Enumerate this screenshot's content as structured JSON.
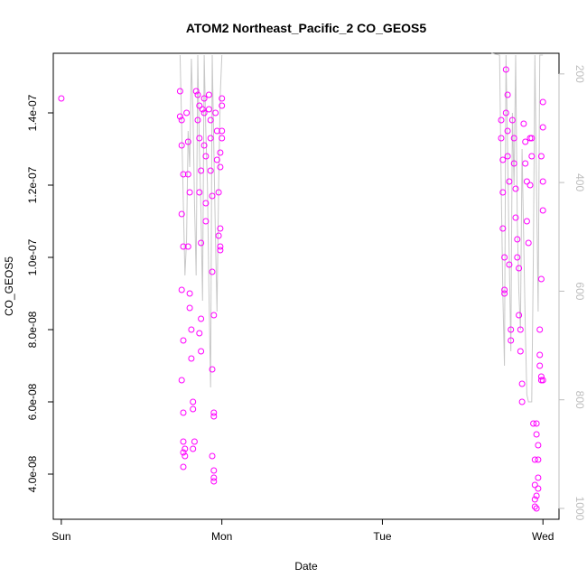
{
  "chart_data": {
    "type": "scatter",
    "title": "ATOM2 Northeast_Pacific_2 CO_GEOS5",
    "xlabel": "Date",
    "ylabel": "CO_GEOS5",
    "x_tick_labels": [
      "Sun",
      "Mon",
      "Tue",
      "Wed"
    ],
    "xlim": [
      -0.05,
      3.1
    ],
    "ylim": [
      2.75e-08,
      1.565e-07
    ],
    "y_ticks": [
      4e-08,
      6e-08,
      8e-08,
      1e-07,
      1.2e-07,
      1.4e-07
    ],
    "y_tick_labels": [
      "4.0e-08",
      "6.0e-08",
      "8.0e-08",
      "1.0e-07",
      "1.2e-07",
      "1.4e-07"
    ],
    "y2_label": "",
    "y2_ticks": [
      200,
      400,
      600,
      800,
      1000
    ],
    "y2_lim": [
      1020,
      162
    ],
    "grid": false,
    "colors": {
      "points": "#ff00ff",
      "line": "#c8c8c8",
      "axis": "#000000",
      "secondary_axis": "#bdbdbd"
    },
    "series": [
      {
        "marker": "open-circle",
        "points": [
          [
            0.0,
            1.44e-07
          ],
          [
            0.74,
            1.46e-07
          ],
          [
            0.74,
            1.39e-07
          ],
          [
            0.75,
            1.38e-07
          ],
          [
            0.75,
            1.31e-07
          ],
          [
            0.76,
            1.23e-07
          ],
          [
            0.75,
            1.12e-07
          ],
          [
            0.76,
            1.03e-07
          ],
          [
            0.75,
            9.1e-08
          ],
          [
            0.76,
            7.7e-08
          ],
          [
            0.75,
            6.6e-08
          ],
          [
            0.76,
            5.7e-08
          ],
          [
            0.76,
            4.9e-08
          ],
          [
            0.77,
            4.7e-08
          ],
          [
            0.76,
            4.6e-08
          ],
          [
            0.77,
            4.5e-08
          ],
          [
            0.76,
            4.2e-08
          ],
          [
            0.78,
            1.4e-07
          ],
          [
            0.79,
            1.32e-07
          ],
          [
            0.79,
            1.23e-07
          ],
          [
            0.8,
            1.18e-07
          ],
          [
            0.79,
            1.03e-07
          ],
          [
            0.8,
            9e-08
          ],
          [
            0.8,
            8.6e-08
          ],
          [
            0.81,
            8e-08
          ],
          [
            0.81,
            7.2e-08
          ],
          [
            0.82,
            6e-08
          ],
          [
            0.82,
            5.8e-08
          ],
          [
            0.83,
            4.9e-08
          ],
          [
            0.82,
            4.7e-08
          ],
          [
            0.84,
            1.46e-07
          ],
          [
            0.85,
            1.45e-07
          ],
          [
            0.86,
            1.42e-07
          ],
          [
            0.85,
            1.38e-07
          ],
          [
            0.86,
            1.33e-07
          ],
          [
            0.87,
            1.24e-07
          ],
          [
            0.86,
            1.18e-07
          ],
          [
            0.87,
            1.04e-07
          ],
          [
            0.87,
            8.3e-08
          ],
          [
            0.86,
            7.9e-08
          ],
          [
            0.87,
            7.4e-08
          ],
          [
            0.88,
            1.41e-07
          ],
          [
            0.89,
            1.44e-07
          ],
          [
            0.89,
            1.4e-07
          ],
          [
            0.89,
            1.31e-07
          ],
          [
            0.9,
            1.28e-07
          ],
          [
            0.9,
            1.15e-07
          ],
          [
            0.9,
            1.1e-07
          ],
          [
            0.92,
            1.45e-07
          ],
          [
            0.92,
            1.41e-07
          ],
          [
            0.93,
            1.38e-07
          ],
          [
            0.93,
            1.33e-07
          ],
          [
            0.93,
            1.24e-07
          ],
          [
            0.94,
            1.17e-07
          ],
          [
            0.94,
            9.6e-08
          ],
          [
            0.95,
            8.4e-08
          ],
          [
            0.94,
            6.9e-08
          ],
          [
            0.95,
            5.7e-08
          ],
          [
            0.95,
            5.6e-08
          ],
          [
            0.94,
            4.5e-08
          ],
          [
            0.95,
            4.1e-08
          ],
          [
            0.95,
            3.9e-08
          ],
          [
            0.95,
            3.8e-08
          ],
          [
            0.96,
            1.4e-07
          ],
          [
            0.97,
            1.35e-07
          ],
          [
            0.97,
            1.27e-07
          ],
          [
            0.98,
            1.18e-07
          ],
          [
            0.98,
            1.06e-07
          ],
          [
            0.99,
            1.02e-07
          ],
          [
            0.99,
            1.29e-07
          ],
          [
            1.0,
            1.33e-07
          ],
          [
            1.0,
            1.42e-07
          ],
          [
            1.0,
            1.44e-07
          ],
          [
            1.0,
            1.35e-07
          ],
          [
            0.99,
            1.25e-07
          ],
          [
            0.99,
            1.08e-07
          ],
          [
            0.99,
            1.03e-07
          ],
          [
            2.74,
            1.38e-07
          ],
          [
            2.74,
            1.33e-07
          ],
          [
            2.75,
            1.27e-07
          ],
          [
            2.75,
            1.18e-07
          ],
          [
            2.75,
            1.08e-07
          ],
          [
            2.76,
            1e-07
          ],
          [
            2.76,
            9.1e-08
          ],
          [
            2.76,
            9e-08
          ],
          [
            2.77,
            1.52e-07
          ],
          [
            2.78,
            1.45e-07
          ],
          [
            2.77,
            1.4e-07
          ],
          [
            2.78,
            1.35e-07
          ],
          [
            2.78,
            1.28e-07
          ],
          [
            2.79,
            1.21e-07
          ],
          [
            2.79,
            9.8e-08
          ],
          [
            2.8,
            8e-08
          ],
          [
            2.8,
            7.7e-08
          ],
          [
            2.81,
            1.38e-07
          ],
          [
            2.82,
            1.33e-07
          ],
          [
            2.82,
            1.26e-07
          ],
          [
            2.83,
            1.19e-07
          ],
          [
            2.83,
            1.11e-07
          ],
          [
            2.84,
            1.05e-07
          ],
          [
            2.84,
            1e-07
          ],
          [
            2.85,
            9.7e-08
          ],
          [
            2.85,
            8.4e-08
          ],
          [
            2.86,
            8e-08
          ],
          [
            2.86,
            7.4e-08
          ],
          [
            2.87,
            6.5e-08
          ],
          [
            2.87,
            6e-08
          ],
          [
            2.88,
            1.37e-07
          ],
          [
            2.89,
            1.32e-07
          ],
          [
            2.89,
            1.26e-07
          ],
          [
            2.9,
            1.21e-07
          ],
          [
            2.9,
            1.1e-07
          ],
          [
            2.91,
            1.04e-07
          ],
          [
            2.92,
            1.33e-07
          ],
          [
            2.92,
            1.2e-07
          ],
          [
            2.93,
            1.33e-07
          ],
          [
            2.93,
            1.28e-07
          ],
          [
            2.94,
            5.4e-08
          ],
          [
            2.95,
            4.4e-08
          ],
          [
            2.95,
            3.7e-08
          ],
          [
            2.95,
            3.3e-08
          ],
          [
            2.95,
            3.1e-08
          ],
          [
            2.96,
            3.05e-08
          ],
          [
            2.96,
            5.4e-08
          ],
          [
            2.96,
            5.1e-08
          ],
          [
            2.97,
            4.8e-08
          ],
          [
            2.97,
            4.4e-08
          ],
          [
            2.97,
            3.9e-08
          ],
          [
            2.97,
            3.6e-08
          ],
          [
            2.96,
            3.4e-08
          ],
          [
            2.98,
            7.3e-08
          ],
          [
            2.98,
            7e-08
          ],
          [
            2.99,
            6.7e-08
          ],
          [
            2.99,
            6.6e-08
          ],
          [
            3.0,
            6.6e-08
          ],
          [
            2.99,
            1.28e-07
          ],
          [
            3.0,
            1.21e-07
          ],
          [
            3.0,
            1.13e-07
          ],
          [
            3.0,
            1.36e-07
          ],
          [
            3.0,
            1.43e-07
          ],
          [
            2.99,
            9.4e-08
          ],
          [
            2.98,
            8e-08
          ]
        ]
      },
      {
        "marker": "line",
        "points": [
          [
            0.74,
            1.56e-07
          ],
          [
            0.75,
            1.36e-07
          ],
          [
            0.76,
            1.15e-07
          ],
          [
            0.77,
            9.5e-08
          ],
          [
            0.78,
            1.05e-07
          ],
          [
            0.79,
            1.35e-07
          ],
          [
            0.8,
            1.25e-07
          ],
          [
            0.81,
            1.55e-07
          ],
          [
            0.82,
            1.4e-07
          ],
          [
            0.83,
            1.15e-07
          ],
          [
            0.84,
            9.5e-08
          ],
          [
            0.85,
            1.56e-07
          ],
          [
            0.86,
            1.3e-07
          ],
          [
            0.87,
            1.12e-07
          ],
          [
            0.88,
            8.8e-08
          ],
          [
            0.89,
            1.56e-07
          ],
          [
            0.9,
            1.35e-07
          ],
          [
            0.91,
            1.2e-07
          ],
          [
            0.92,
            9e-08
          ],
          [
            0.93,
            6.4e-08
          ],
          [
            0.94,
            1.56e-07
          ],
          [
            0.95,
            1.3e-07
          ],
          [
            0.96,
            1.05e-07
          ],
          [
            0.97,
            8.5e-08
          ],
          [
            0.98,
            1.2e-07
          ],
          [
            0.99,
            1.45e-07
          ],
          [
            1.0,
            1.56e-07
          ],
          [
            2.68,
            1.566e-07
          ],
          [
            2.73,
            1.56e-07
          ],
          [
            2.74,
            1.2e-07
          ],
          [
            2.75,
            9e-08
          ],
          [
            2.76,
            7e-08
          ],
          [
            2.77,
            1.56e-07
          ],
          [
            2.78,
            1.3e-07
          ],
          [
            2.79,
            1e-07
          ],
          [
            2.8,
            7.4e-08
          ],
          [
            2.81,
            1.4e-07
          ],
          [
            2.82,
            1.2e-07
          ],
          [
            2.83,
            1.56e-07
          ],
          [
            2.84,
            1.1e-07
          ],
          [
            2.85,
            9e-08
          ],
          [
            2.86,
            8e-08
          ],
          [
            2.87,
            1.3e-07
          ],
          [
            2.88,
            1.05e-07
          ],
          [
            2.89,
            8e-08
          ],
          [
            2.9,
            6.2e-08
          ],
          [
            2.91,
            6e-08
          ],
          [
            2.93,
            6e-08
          ],
          [
            2.94,
            1e-07
          ],
          [
            2.95,
            1.56e-07
          ],
          [
            2.96,
            1.2e-07
          ],
          [
            2.97,
            8.5e-08
          ],
          [
            2.98,
            1.56e-07
          ],
          [
            3.0,
            1.56e-07
          ]
        ]
      }
    ]
  }
}
